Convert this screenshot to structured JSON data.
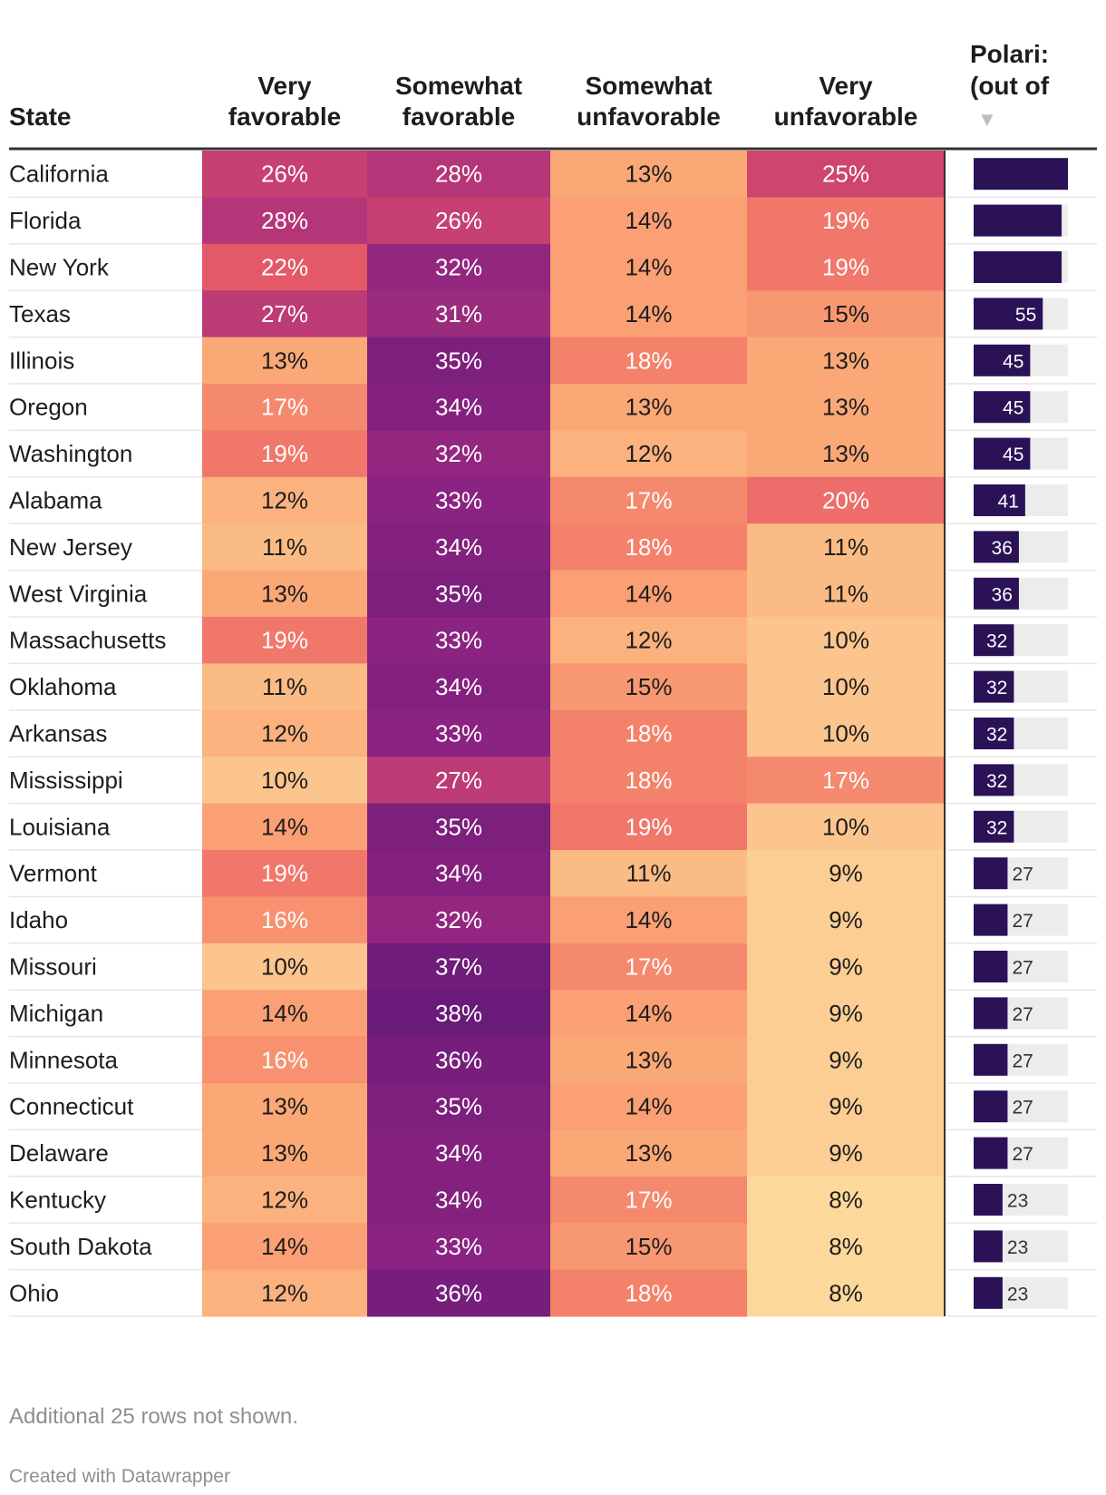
{
  "chart_data": {
    "type": "table",
    "columns": [
      {
        "key": "state",
        "label_lines": [
          "State"
        ]
      },
      {
        "key": "very_fav",
        "label_lines": [
          "Very",
          "favorable"
        ]
      },
      {
        "key": "some_fav",
        "label_lines": [
          "Somewhat",
          "favorable"
        ]
      },
      {
        "key": "some_unfav",
        "label_lines": [
          "Somewhat",
          "unfavorable"
        ]
      },
      {
        "key": "very_unfav",
        "label_lines": [
          "Very",
          "unfavorable"
        ]
      },
      {
        "key": "polar",
        "label_lines": [
          "Polari:",
          "(out of"
        ],
        "sort_indicator": "▼"
      }
    ],
    "heatmap_scale": {
      "min": 8,
      "max": 38,
      "colors": [
        "#fcd89b",
        "#fba877",
        "#f4816a",
        "#df4f68",
        "#b53678",
        "#8a2381",
        "#6a1a78"
      ]
    },
    "bar_color": "#2b1257",
    "bar_track_color": "#ececec",
    "rows": [
      {
        "state": "California",
        "very_fav": "26%",
        "some_fav": "28%",
        "some_unfav": "13%",
        "very_unfav": "25%",
        "polar": ""
      },
      {
        "state": "Florida",
        "very_fav": "28%",
        "some_fav": "26%",
        "some_unfav": "14%",
        "very_unfav": "19%",
        "polar": ""
      },
      {
        "state": "New York",
        "very_fav": "22%",
        "some_fav": "32%",
        "some_unfav": "14%",
        "very_unfav": "19%",
        "polar": ""
      },
      {
        "state": "Texas",
        "very_fav": "27%",
        "some_fav": "31%",
        "some_unfav": "14%",
        "very_unfav": "15%",
        "polar": "55"
      },
      {
        "state": "Illinois",
        "very_fav": "13%",
        "some_fav": "35%",
        "some_unfav": "18%",
        "very_unfav": "13%",
        "polar": "45"
      },
      {
        "state": "Oregon",
        "very_fav": "17%",
        "some_fav": "34%",
        "some_unfav": "13%",
        "very_unfav": "13%",
        "polar": "45"
      },
      {
        "state": "Washington",
        "very_fav": "19%",
        "some_fav": "32%",
        "some_unfav": "12%",
        "very_unfav": "13%",
        "polar": "45"
      },
      {
        "state": "Alabama",
        "very_fav": "12%",
        "some_fav": "33%",
        "some_unfav": "17%",
        "very_unfav": "20%",
        "polar": "41"
      },
      {
        "state": "New Jersey",
        "very_fav": "11%",
        "some_fav": "34%",
        "some_unfav": "18%",
        "very_unfav": "11%",
        "polar": "36"
      },
      {
        "state": "West Virginia",
        "very_fav": "13%",
        "some_fav": "35%",
        "some_unfav": "14%",
        "very_unfav": "11%",
        "polar": "36"
      },
      {
        "state": "Massachusetts",
        "very_fav": "19%",
        "some_fav": "33%",
        "some_unfav": "12%",
        "very_unfav": "10%",
        "polar": "32"
      },
      {
        "state": "Oklahoma",
        "very_fav": "11%",
        "some_fav": "34%",
        "some_unfav": "15%",
        "very_unfav": "10%",
        "polar": "32"
      },
      {
        "state": "Arkansas",
        "very_fav": "12%",
        "some_fav": "33%",
        "some_unfav": "18%",
        "very_unfav": "10%",
        "polar": "32"
      },
      {
        "state": "Mississippi",
        "very_fav": "10%",
        "some_fav": "27%",
        "some_unfav": "18%",
        "very_unfav": "17%",
        "polar": "32"
      },
      {
        "state": "Louisiana",
        "very_fav": "14%",
        "some_fav": "35%",
        "some_unfav": "19%",
        "very_unfav": "10%",
        "polar": "32"
      },
      {
        "state": "Vermont",
        "very_fav": "19%",
        "some_fav": "34%",
        "some_unfav": "11%",
        "very_unfav": "9%",
        "polar": "27"
      },
      {
        "state": "Idaho",
        "very_fav": "16%",
        "some_fav": "32%",
        "some_unfav": "14%",
        "very_unfav": "9%",
        "polar": "27"
      },
      {
        "state": "Missouri",
        "very_fav": "10%",
        "some_fav": "37%",
        "some_unfav": "17%",
        "very_unfav": "9%",
        "polar": "27"
      },
      {
        "state": "Michigan",
        "very_fav": "14%",
        "some_fav": "38%",
        "some_unfav": "14%",
        "very_unfav": "9%",
        "polar": "27"
      },
      {
        "state": "Minnesota",
        "very_fav": "16%",
        "some_fav": "36%",
        "some_unfav": "13%",
        "very_unfav": "9%",
        "polar": "27"
      },
      {
        "state": "Connecticut",
        "very_fav": "13%",
        "some_fav": "35%",
        "some_unfav": "14%",
        "very_unfav": "9%",
        "polar": "27"
      },
      {
        "state": "Delaware",
        "very_fav": "13%",
        "some_fav": "34%",
        "some_unfav": "13%",
        "very_unfav": "9%",
        "polar": "27"
      },
      {
        "state": "Kentucky",
        "very_fav": "12%",
        "some_fav": "34%",
        "some_unfav": "17%",
        "very_unfav": "8%",
        "polar": "23"
      },
      {
        "state": "South Dakota",
        "very_fav": "14%",
        "some_fav": "33%",
        "some_unfav": "15%",
        "very_unfav": "8%",
        "polar": "23"
      },
      {
        "state": "Ohio",
        "very_fav": "12%",
        "some_fav": "36%",
        "some_unfav": "18%",
        "very_unfav": "8%",
        "polar": "23"
      }
    ],
    "polar_bar_values": [
      75,
      70,
      70,
      55,
      45,
      45,
      45,
      41,
      36,
      36,
      32,
      32,
      32,
      32,
      32,
      27,
      27,
      27,
      27,
      27,
      27,
      27,
      23,
      23,
      23
    ],
    "polar_bar_max": 75
  },
  "footer": {
    "note": "Additional 25 rows not shown.",
    "credit": "Created with Datawrapper"
  }
}
